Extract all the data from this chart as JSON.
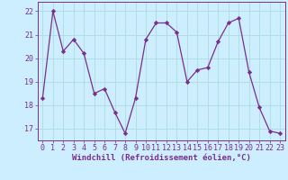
{
  "x": [
    0,
    1,
    2,
    3,
    4,
    5,
    6,
    7,
    8,
    9,
    10,
    11,
    12,
    13,
    14,
    15,
    16,
    17,
    18,
    19,
    20,
    21,
    22,
    23
  ],
  "y": [
    18.3,
    22.0,
    20.3,
    20.8,
    20.2,
    18.5,
    18.7,
    17.7,
    16.8,
    18.3,
    20.8,
    21.5,
    21.5,
    21.1,
    19.0,
    19.5,
    19.6,
    20.7,
    21.5,
    21.7,
    19.4,
    17.9,
    16.9,
    16.8
  ],
  "line_color": "#7B2D8B",
  "marker": "D",
  "marker_size": 2.2,
  "bg_color": "#cceeff",
  "grid_color": "#aadddd",
  "xlabel": "Windchill (Refroidissement éolien,°C)",
  "ylim": [
    16.5,
    22.4
  ],
  "xlim": [
    -0.5,
    23.5
  ],
  "yticks": [
    17,
    18,
    19,
    20,
    21,
    22
  ],
  "xticks": [
    0,
    1,
    2,
    3,
    4,
    5,
    6,
    7,
    8,
    9,
    10,
    11,
    12,
    13,
    14,
    15,
    16,
    17,
    18,
    19,
    20,
    21,
    22,
    23
  ],
  "xlabel_fontsize": 6.5,
  "tick_fontsize": 6.0,
  "tick_color": "#7B2D8B",
  "label_color": "#7B2D8B",
  "linewidth": 0.9
}
